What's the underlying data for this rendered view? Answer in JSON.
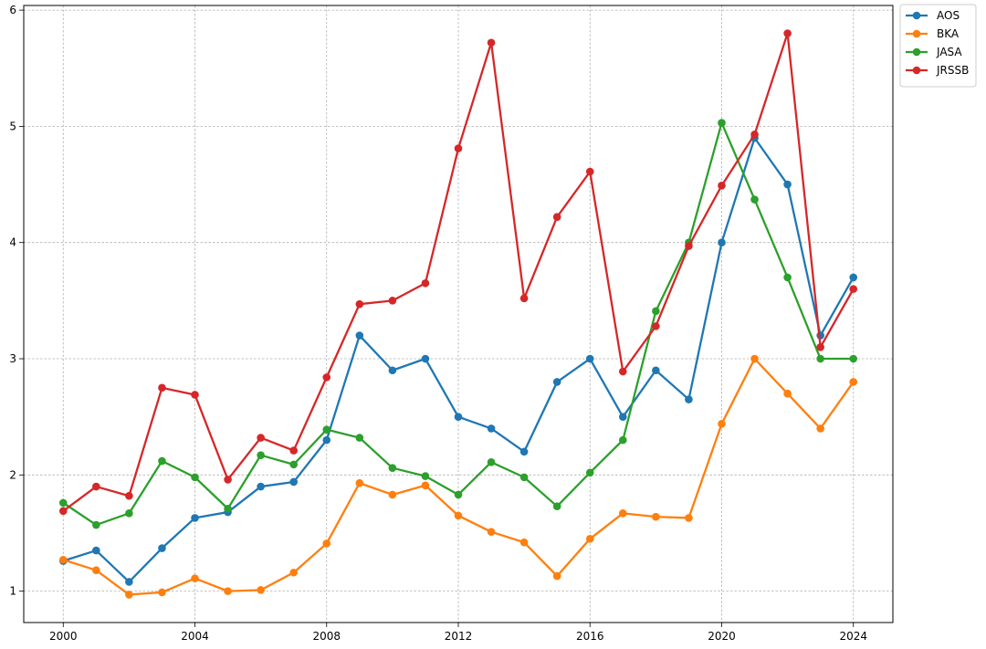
{
  "chart_data": {
    "type": "line",
    "title": "",
    "xlabel": "",
    "ylabel": "",
    "x": [
      2000,
      2001,
      2002,
      2003,
      2004,
      2005,
      2006,
      2007,
      2008,
      2009,
      2010,
      2011,
      2012,
      2013,
      2014,
      2015,
      2016,
      2017,
      2018,
      2019,
      2020,
      2021,
      2022,
      2023,
      2024
    ],
    "xlim": [
      1998.8,
      2025.2
    ],
    "ylim": [
      0.73,
      6.04
    ],
    "xticks": [
      2000,
      2004,
      2008,
      2012,
      2016,
      2020,
      2024
    ],
    "yticks": [
      1,
      2,
      3,
      4,
      5,
      6
    ],
    "grid": true,
    "legend_position": "outside-top-right",
    "series": [
      {
        "name": "AOS",
        "color": "#1f77b4",
        "values": [
          1.26,
          1.35,
          1.08,
          1.37,
          1.63,
          1.68,
          1.9,
          1.94,
          2.3,
          3.2,
          2.9,
          3.0,
          2.5,
          2.4,
          2.2,
          2.8,
          3.0,
          2.5,
          2.9,
          2.65,
          4.0,
          4.9,
          4.5,
          3.2,
          3.7
        ]
      },
      {
        "name": "BKA",
        "color": "#ff7f0e",
        "values": [
          1.27,
          1.18,
          0.97,
          0.99,
          1.11,
          1.0,
          1.01,
          1.16,
          1.41,
          1.93,
          1.83,
          1.91,
          1.65,
          1.51,
          1.42,
          1.13,
          1.45,
          1.67,
          1.64,
          1.63,
          2.44,
          3.0,
          2.7,
          2.4,
          2.8
        ]
      },
      {
        "name": "JASA",
        "color": "#2ca02c",
        "values": [
          1.76,
          1.57,
          1.67,
          2.12,
          1.98,
          1.71,
          2.17,
          2.09,
          2.39,
          2.32,
          2.06,
          1.99,
          1.83,
          2.11,
          1.98,
          1.73,
          2.02,
          2.3,
          3.41,
          4.0,
          5.03,
          4.37,
          3.7,
          3.0,
          3.0
        ]
      },
      {
        "name": "JRSSB",
        "color": "#d62728",
        "values": [
          1.69,
          1.9,
          1.82,
          2.75,
          2.69,
          1.96,
          2.32,
          2.21,
          2.84,
          3.47,
          3.5,
          3.65,
          4.81,
          5.72,
          3.52,
          4.22,
          4.61,
          2.89,
          3.28,
          3.97,
          4.49,
          4.93,
          5.8,
          3.1,
          3.6
        ]
      }
    ]
  }
}
